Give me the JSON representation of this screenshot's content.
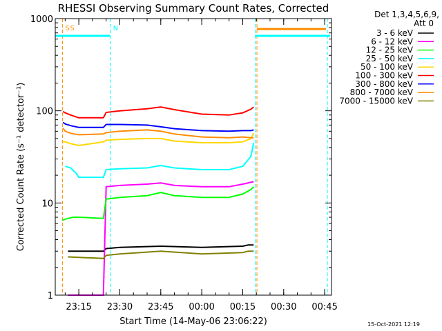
{
  "chart_data": {
    "type": "line",
    "title": "RHESSI Observing Summary Count Rates, Corrected",
    "xlabel": "Start Time (14-May-06 23:06:22)",
    "ylabel": "Corrected Count Rate (s⁻¹ detector⁻¹)",
    "y_scale": "log",
    "ylim": [
      1,
      1000
    ],
    "y_ticks": [
      "1",
      "10",
      "100",
      "1000"
    ],
    "x_ticks": [
      "23:15",
      "23:30",
      "23:45",
      "00:00",
      "00:15",
      "00:30",
      "00:45"
    ],
    "x_tick_minutes": [
      15,
      30,
      45,
      60,
      75,
      90,
      105
    ],
    "xlim_minutes": [
      6.37,
      107.5
    ],
    "legend_header": [
      "Det 1,3,4,5,6,9,",
      "Att 0"
    ],
    "annotations": [
      {
        "text": "S",
        "color": "#ff8c00",
        "x_min": 9.0
      },
      {
        "text": "S",
        "color": "#ff8c00",
        "x_min": 10.8
      },
      {
        "text": "N",
        "color": "#00ffff",
        "x_min": 26.5
      }
    ],
    "footer_date": "15-Oct-2021 12:19",
    "series": [
      {
        "name": "3 - 6 keV",
        "color": "#000000",
        "x": [
          11,
          24,
          25,
          30,
          45,
          60,
          75,
          77,
          79
        ],
        "y": [
          3,
          3,
          3.2,
          3.3,
          3.4,
          3.3,
          3.4,
          3.5,
          3.5
        ]
      },
      {
        "name": "6 - 12 keV",
        "color": "#ff00ff",
        "x": [
          11,
          24,
          25,
          30,
          40,
          45,
          50,
          60,
          70,
          75,
          79
        ],
        "y": [
          1,
          1,
          15,
          15.5,
          16,
          16.5,
          15.5,
          15,
          15,
          16,
          17
        ]
      },
      {
        "name": "12 - 25 keV",
        "color": "#00ff00",
        "x": [
          9,
          11,
          13,
          15,
          24,
          25,
          30,
          40,
          45,
          50,
          60,
          70,
          75,
          78,
          79
        ],
        "y": [
          6.5,
          6.8,
          7,
          7,
          6.8,
          11,
          11.5,
          12,
          13,
          12,
          11.5,
          11.5,
          12.5,
          14,
          15
        ]
      },
      {
        "name": "25 - 50 keV",
        "color": "#00ffff",
        "x": [
          10,
          12,
          14,
          15,
          24,
          25,
          30,
          40,
          45,
          50,
          60,
          70,
          75,
          78,
          79
        ],
        "y": [
          25,
          24,
          21,
          19,
          19,
          23,
          23.5,
          24,
          25.5,
          24,
          23,
          23,
          25,
          32,
          45
        ]
      },
      {
        "name": "50 - 100 keV",
        "color": "#ffd700",
        "x": [
          9.2,
          10,
          12,
          15,
          24,
          25,
          30,
          40,
          45,
          50,
          60,
          70,
          75,
          78,
          79
        ],
        "y": [
          46,
          46,
          44,
          42,
          46,
          48,
          49,
          50,
          50,
          47,
          45,
          45,
          46,
          50,
          57
        ]
      },
      {
        "name": "100 - 300 keV",
        "color": "#ff0000",
        "x": [
          9.2,
          10,
          12,
          15,
          24,
          25,
          30,
          40,
          45,
          50,
          60,
          70,
          75,
          78,
          79
        ],
        "y": [
          98,
          95,
          90,
          84,
          84,
          96,
          100,
          105,
          110,
          103,
          92,
          90,
          95,
          104,
          110
        ]
      },
      {
        "name": "300 - 800 keV",
        "color": "#0000ff",
        "x": [
          9.2,
          10,
          12,
          15,
          24,
          25,
          30,
          40,
          45,
          50,
          60,
          70,
          75,
          78,
          79
        ],
        "y": [
          75,
          72,
          69,
          66,
          66,
          71,
          71,
          70,
          67,
          64,
          61,
          60,
          61,
          61,
          62
        ]
      },
      {
        "name": "800 - 7000 keV",
        "color": "#ff8c00",
        "x": [
          9.2,
          10,
          12,
          15,
          24,
          25,
          30,
          40,
          45,
          50,
          60,
          70,
          75,
          78,
          79
        ],
        "y": [
          65,
          60,
          57,
          55,
          56,
          58,
          60,
          62,
          60,
          56,
          52,
          51,
          52,
          51,
          51
        ]
      },
      {
        "name": "7000 - 15000 keV",
        "color": "#808000",
        "x": [
          11,
          24,
          25,
          30,
          45,
          60,
          75,
          77,
          79
        ],
        "y": [
          2.6,
          2.5,
          2.7,
          2.8,
          3,
          2.8,
          2.9,
          3,
          3
        ]
      }
    ],
    "segments": [
      {
        "color": "#00ffff",
        "x0": 6.5,
        "x1": 26.5,
        "y": 650
      },
      {
        "color": "#00ffff",
        "x0": 79.6,
        "x1": 107,
        "y": 650
      },
      {
        "color": "#ff8c00",
        "x0": 80.2,
        "x1": 105.5,
        "y": 770
      }
    ],
    "vlines": [
      {
        "color": "#ff8c00",
        "x": 9.0
      },
      {
        "color": "#ff8c00",
        "x": 80.2
      },
      {
        "color": "#00ffff",
        "x": 26.5
      },
      {
        "color": "#00ffff",
        "x": 79.6
      },
      {
        "color": "#00ffff",
        "x": 106
      }
    ]
  }
}
